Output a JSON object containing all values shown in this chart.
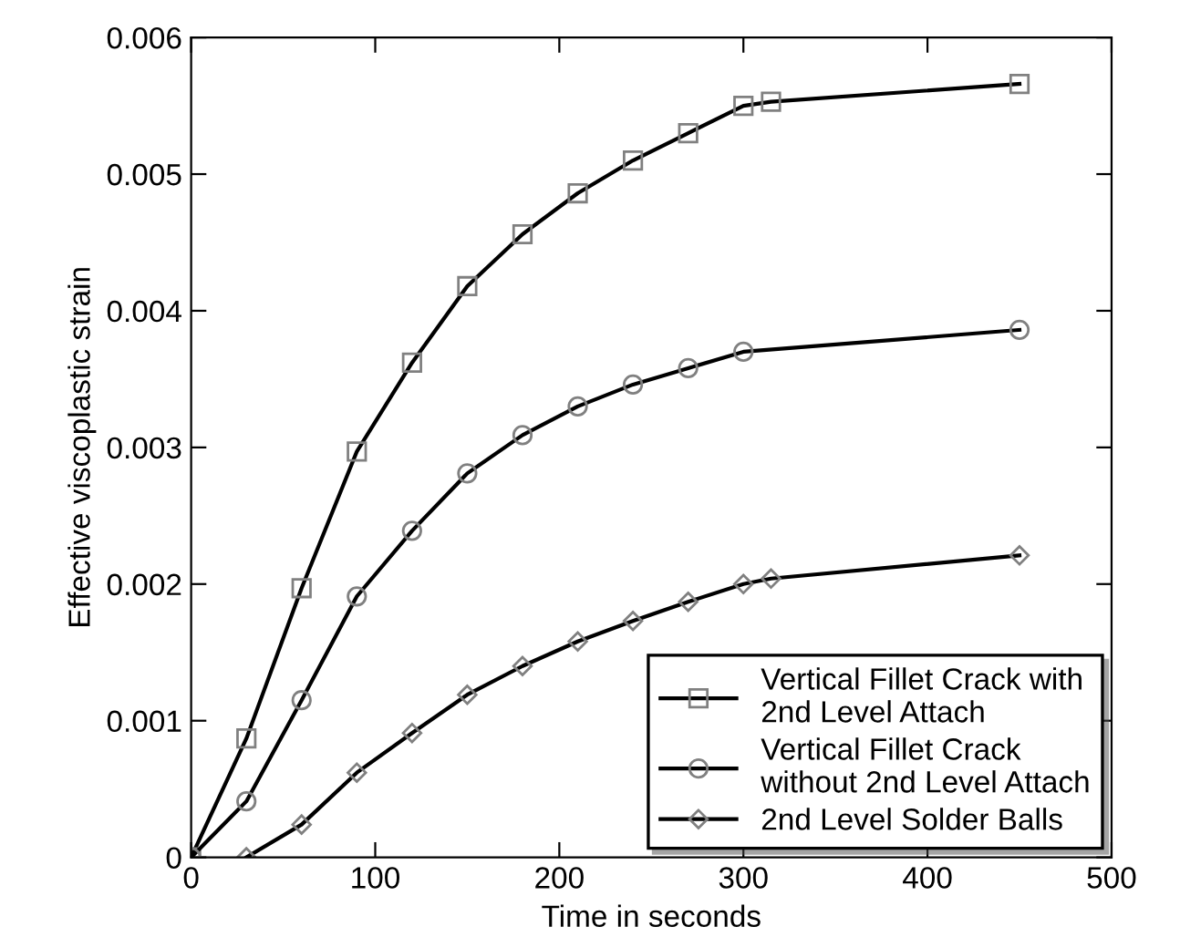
{
  "chart_data": {
    "type": "line",
    "xlabel": "Time in seconds",
    "ylabel": "Effective viscoplastic strain",
    "xlim": [
      0,
      500
    ],
    "xticks": [
      0,
      100,
      200,
      300,
      400,
      500
    ],
    "ylim": [
      0,
      0.006
    ],
    "yticks": [
      {
        "value": 0,
        "label": "0"
      },
      {
        "value": 0.001,
        "label": "0.001"
      },
      {
        "value": 0.002,
        "label": "0.002"
      },
      {
        "value": 0.003,
        "label": "0.003"
      },
      {
        "value": 0.004,
        "label": "0.004"
      },
      {
        "value": 0.005,
        "label": "0.005"
      },
      {
        "value": 0.006,
        "label": "0.006"
      }
    ],
    "grid": false,
    "legend": "bottom right",
    "line_style": "solid",
    "series": [
      {
        "name": "Vertical Fillet Crack with\n2nd Level Attach",
        "color": "#000000",
        "marker": "square",
        "x": [
          0,
          30,
          60,
          90,
          120,
          150,
          180,
          210,
          240,
          270,
          300,
          315,
          450
        ],
        "values": [
          0,
          0.00087,
          0.00197,
          0.00297,
          0.00362,
          0.00418,
          0.00456,
          0.00486,
          0.0051,
          0.0053,
          0.0055,
          0.00553,
          0.00566
        ]
      },
      {
        "name": "Vertical Fillet Crack\nwithout 2nd Level Attach",
        "color": "#000000",
        "marker": "circle",
        "x": [
          0,
          30,
          60,
          90,
          120,
          150,
          180,
          210,
          240,
          270,
          300,
          450
        ],
        "values": [
          0,
          0.00041,
          0.00115,
          0.00191,
          0.00239,
          0.00281,
          0.00309,
          0.0033,
          0.00346,
          0.00358,
          0.0037,
          0.00386
        ]
      },
      {
        "name": "2nd Level Solder Balls",
        "color": "#000000",
        "marker": "diamond",
        "x": [
          30,
          60,
          90,
          120,
          150,
          180,
          210,
          240,
          270,
          300,
          315,
          450
        ],
        "values": [
          0,
          0.00024,
          0.00062,
          0.00091,
          0.00119,
          0.0014,
          0.00158,
          0.00173,
          0.00187,
          0.002,
          0.00204,
          0.00221
        ]
      }
    ]
  }
}
